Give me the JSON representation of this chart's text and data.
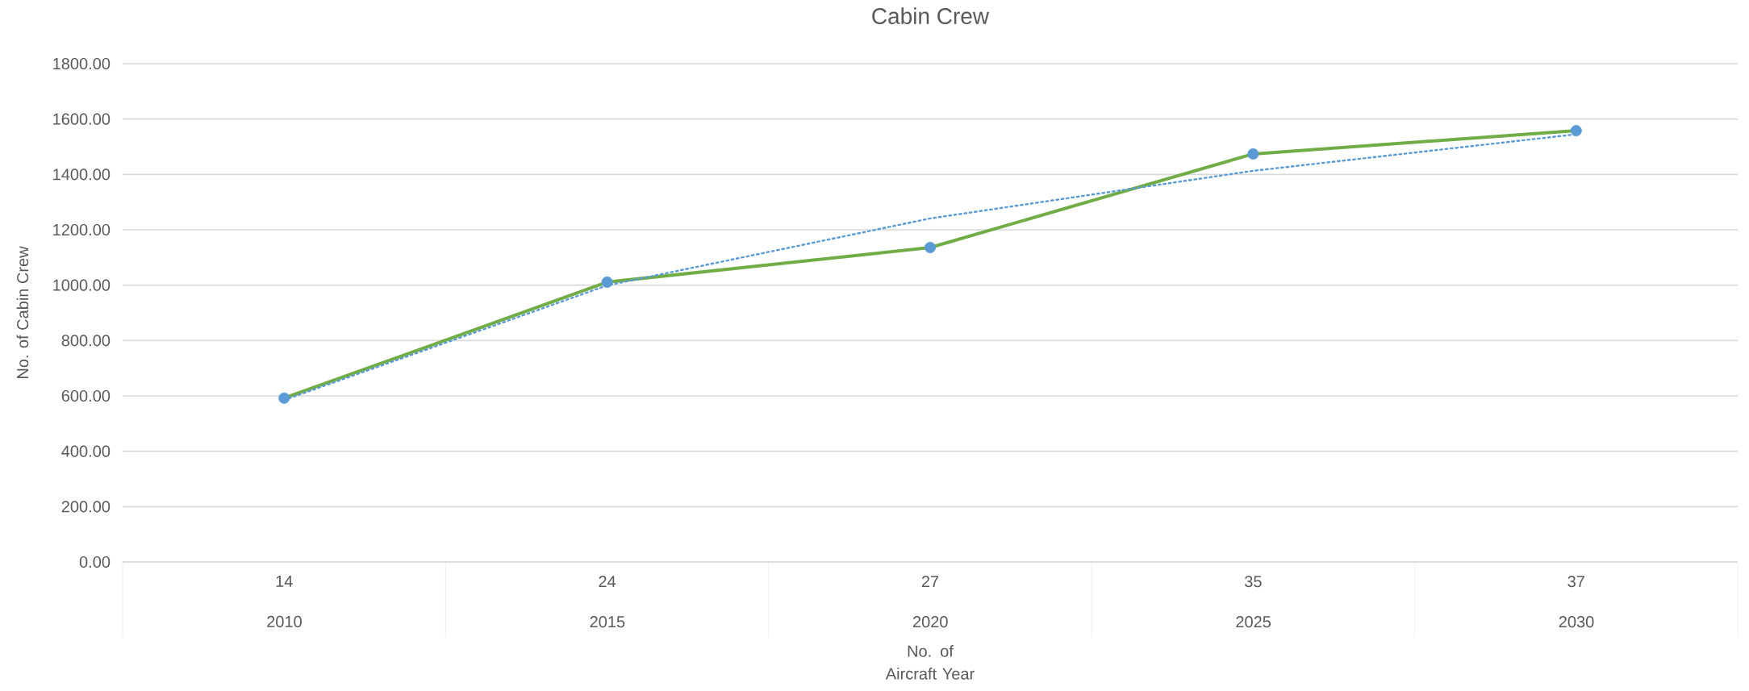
{
  "chart_data": {
    "type": "line",
    "title": "Cabin Crew",
    "xlabel": "No. of Aircraft Year",
    "ylabel": "No. of Cabin Crew",
    "categories": [
      "14 2010",
      "24 2015",
      "27 2020",
      "35 2025",
      "37 2030"
    ],
    "series": [
      {
        "color": "#70ad47",
        "values": [
          592,
          1011,
          1136,
          1474,
          1558
        ],
        "marker": "circle",
        "colors": [
          "#5b9bd5",
          "#5b9bd5",
          "#5b9bd5",
          "#5b9bd5",
          "#5b9bd5"
        ],
        "line_style": "solid"
      },
      {
        "color": "#5b9bd5",
        "values": [
          585,
          999,
          1241,
          1413,
          1545
        ],
        "line_style": "dotted"
      }
    ],
    "ylim": [
      0,
      1800
    ],
    "yticks": [
      {
        "value": 0,
        "label": "0.00"
      },
      {
        "value": 200,
        "label": "200.00"
      },
      {
        "value": 400,
        "label": "400.00"
      },
      {
        "value": 600,
        "label": "600.00"
      },
      {
        "value": 800,
        "label": "800.00"
      },
      {
        "value": 1000,
        "label": "1000.00"
      },
      {
        "value": 1200,
        "label": "1200.00"
      },
      {
        "value": 1400,
        "label": "1400.00"
      },
      {
        "value": 1600,
        "label": "1600.00"
      },
      {
        "value": 1800,
        "label": "1800.00"
      }
    ],
    "grid": "y"
  }
}
